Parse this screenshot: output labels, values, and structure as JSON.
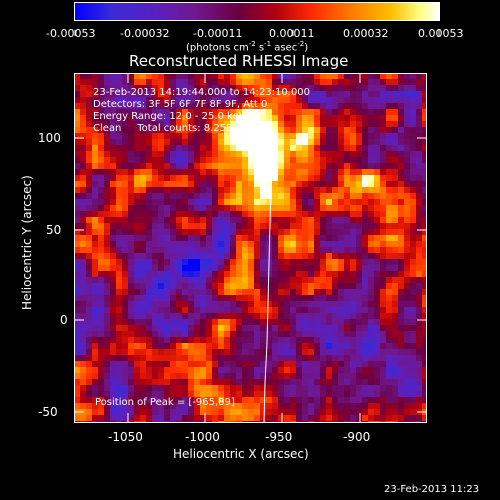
{
  "colorbar": {
    "tick_labels": [
      "-0.00053",
      "-0.00032",
      "-0.00011",
      "0.00011",
      "0.00032",
      "0.00053"
    ],
    "unit_html": "(photons cm<sup style=\"font-size:7px\">-2</sup> s<sup style=\"font-size:7px\">-1</sup> asec<sup style=\"font-size:7px\">-2</sup>)",
    "colors": [
      "#0000ff",
      "#5a20d0",
      "#7a1090",
      "#7a0030",
      "#ff3300",
      "#ff9900",
      "#ffff99",
      "#ffffff"
    ]
  },
  "title": "Reconstructed RHESSI Image",
  "annotation": {
    "line1": "23-Feb-2013 14:19:44.000 to 14:23:10.000",
    "line2": "Detectors: 3F 5F 6F 7F 8F 9F, Att 0",
    "line3": "Energy Range: 12.0 - 25.0 keV",
    "line4": "Clean     Total counts: 8.25E+03",
    "peak": "Position of Peak = [-965,89]"
  },
  "axes": {
    "xlabel": "Heliocentric X (arcsec)",
    "ylabel": "Heliocentric Y (arcsec)",
    "x_ticks": [
      "-1050",
      "-1000",
      "-950",
      "-900"
    ],
    "y_ticks": [
      "100",
      "50",
      "0",
      "-50"
    ]
  },
  "timestamp": "23-Feb-2013 11:23",
  "image": {
    "description_icon": "heatmap-image",
    "peak_position": [
      -965,
      89
    ]
  }
}
